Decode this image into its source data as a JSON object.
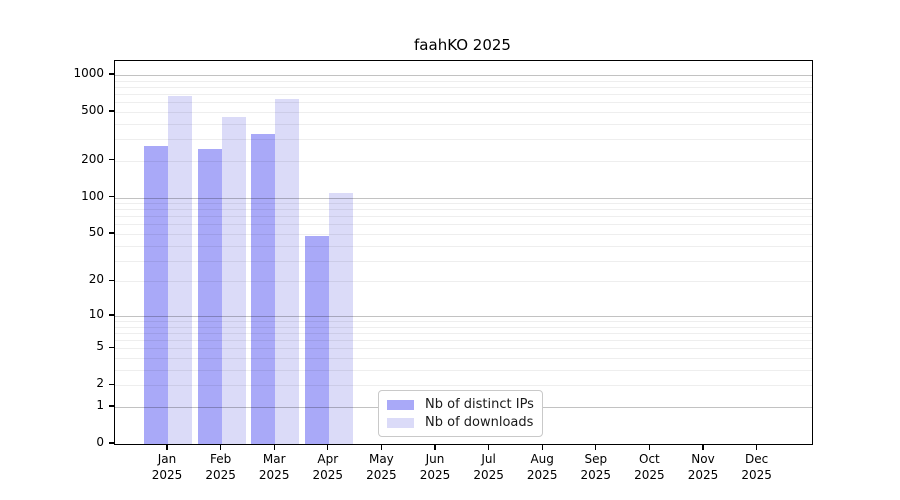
{
  "title": "faahKO 2025",
  "legend": {
    "items": [
      {
        "label": "Nb of distinct IPs",
        "color": "#a9a9f8"
      },
      {
        "label": "Nb of downloads",
        "color": "#dbdbf8"
      }
    ]
  },
  "chart_data": {
    "type": "bar",
    "title": "faahKO 2025",
    "categories": [
      {
        "month": "Jan",
        "year": "2025"
      },
      {
        "month": "Feb",
        "year": "2025"
      },
      {
        "month": "Mar",
        "year": "2025"
      },
      {
        "month": "Apr",
        "year": "2025"
      },
      {
        "month": "May",
        "year": "2025"
      },
      {
        "month": "Jun",
        "year": "2025"
      },
      {
        "month": "Jul",
        "year": "2025"
      },
      {
        "month": "Aug",
        "year": "2025"
      },
      {
        "month": "Sep",
        "year": "2025"
      },
      {
        "month": "Oct",
        "year": "2025"
      },
      {
        "month": "Nov",
        "year": "2025"
      },
      {
        "month": "Dec",
        "year": "2025"
      }
    ],
    "series": [
      {
        "name": "Nb of distinct IPs",
        "color": "#a9a9f8",
        "values": [
          265,
          250,
          333,
          48,
          null,
          null,
          null,
          null,
          null,
          null,
          null,
          null
        ]
      },
      {
        "name": "Nb of downloads",
        "color": "#dbdbf8",
        "values": [
          672,
          458,
          637,
          108,
          null,
          null,
          null,
          null,
          null,
          null,
          null,
          null
        ]
      }
    ],
    "yscale": "log10(1+x)",
    "ylim": [
      0,
      1300
    ],
    "ytick_values": [
      0,
      1,
      2,
      5,
      10,
      20,
      50,
      100,
      200,
      500,
      1000
    ],
    "ytick_labels": [
      "0",
      "1",
      "2",
      "5",
      "10",
      "20",
      "50",
      "100",
      "200",
      "500",
      "1000"
    ],
    "grid": "horizontal; light minor lines at 2-9 of each decade, darker lines at powers of 10",
    "legend_position": "inside bottom-center",
    "xlabel": "",
    "ylabel": ""
  }
}
